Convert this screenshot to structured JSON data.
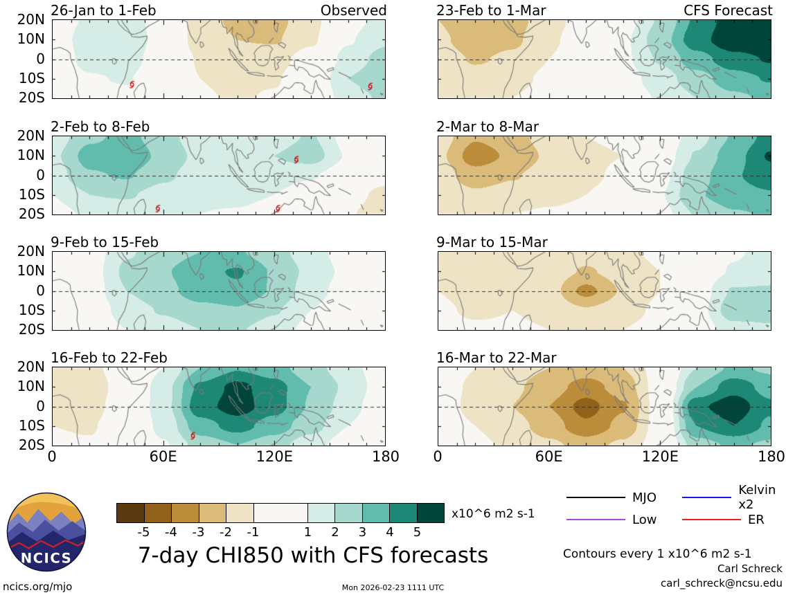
{
  "chart_data": {
    "type": "heatmap",
    "title": "7-day CHI850 with CFS forecasts",
    "units": "x10^6 m2 s-1",
    "lon": [
      0,
      20,
      40,
      60,
      80,
      100,
      120,
      140,
      160,
      180
    ],
    "lat": [
      20,
      10,
      0,
      -10,
      -20
    ],
    "x_ticks": [
      "0",
      "60E",
      "120E",
      "180"
    ],
    "y_ticks": [
      "20N",
      "10N",
      "0",
      "10S",
      "20S"
    ],
    "colorbar": {
      "ticks": [
        -5,
        -4,
        -3,
        -2,
        -1,
        1,
        2,
        3,
        4,
        5
      ],
      "colors": [
        "#5a3a10",
        "#91611b",
        "#bb8c3a",
        "#dabb79",
        "#eee3c4",
        "#f8f7f4",
        "#d6ece6",
        "#a6d8ce",
        "#62bcad",
        "#1d8876",
        "#00453a"
      ]
    },
    "panels": [
      {
        "title": "26-Jan to 1-Feb",
        "corner_label": "Observed",
        "column": "Observed",
        "values": [
          [
            0.3,
            1.2,
            1.6,
            0.4,
            -1.6,
            -2.2,
            -2.3,
            -1.4,
            0.6,
            1.4
          ],
          [
            0.3,
            1.6,
            2.0,
            0.3,
            -1.5,
            -2.0,
            -2.1,
            -1.2,
            0.9,
            1.8
          ],
          [
            0.2,
            1.4,
            1.6,
            0.1,
            -1.1,
            -1.5,
            -1.4,
            -0.5,
            1.4,
            2.4
          ],
          [
            0.1,
            0.9,
            1.1,
            -0.2,
            -1.0,
            -1.3,
            -1.1,
            -0.1,
            2.0,
            2.8
          ],
          [
            0.0,
            0.5,
            0.7,
            -0.3,
            -0.9,
            -1.1,
            -0.9,
            -0.1,
            1.5,
            2.2
          ]
        ],
        "cyclones": [
          {
            "lon": 43,
            "lat": -13
          },
          {
            "lon": 172,
            "lat": -14
          }
        ]
      },
      {
        "title": "2-Feb to 8-Feb",
        "column": "Observed",
        "values": [
          [
            1.4,
            2.8,
            3.3,
            2.4,
            1.4,
            1.1,
            1.6,
            2.1,
            0.6,
            0.0
          ],
          [
            1.8,
            3.4,
            3.8,
            2.7,
            1.7,
            1.4,
            2.0,
            2.5,
            0.9,
            0.0
          ],
          [
            1.5,
            2.9,
            3.1,
            2.2,
            1.5,
            1.4,
            1.5,
            1.1,
            0.3,
            -0.6
          ],
          [
            1.0,
            2.0,
            2.1,
            1.6,
            1.2,
            1.3,
            1.0,
            0.3,
            -0.6,
            -1.3
          ],
          [
            0.6,
            1.2,
            1.4,
            1.1,
            1.0,
            0.9,
            0.5,
            0.0,
            -0.9,
            -1.6
          ]
        ],
        "cyclones": [
          {
            "lon": 132,
            "lat": 8
          },
          {
            "lon": 57,
            "lat": -17
          },
          {
            "lon": 122,
            "lat": -17
          }
        ]
      },
      {
        "title": "9-Feb to 15-Feb",
        "column": "Observed",
        "values": [
          [
            -0.8,
            0.4,
            1.9,
            2.5,
            3.0,
            3.1,
            2.4,
            1.4,
            0.5,
            0.2
          ],
          [
            -1.0,
            0.5,
            2.2,
            2.9,
            3.7,
            4.1,
            2.9,
            1.7,
            0.7,
            0.3
          ],
          [
            -1.0,
            0.4,
            2.0,
            2.7,
            3.5,
            3.8,
            2.9,
            1.4,
            0.5,
            0.2
          ],
          [
            -0.8,
            0.2,
            1.5,
            2.1,
            2.7,
            2.9,
            2.1,
            1.0,
            0.3,
            0.0
          ],
          [
            -0.5,
            0.1,
            1.0,
            1.5,
            2.0,
            2.1,
            1.5,
            0.7,
            0.2,
            0.0
          ]
        ],
        "cyclones": []
      },
      {
        "title": "16-Feb to 22-Feb",
        "column": "Observed",
        "values": [
          [
            -1.0,
            -1.2,
            -0.5,
            1.0,
            3.0,
            3.9,
            3.4,
            2.4,
            1.4,
            0.3
          ],
          [
            -1.2,
            -1.5,
            -0.5,
            1.6,
            4.2,
            5.3,
            4.4,
            3.0,
            1.8,
            0.3
          ],
          [
            -1.2,
            -1.4,
            -0.3,
            1.6,
            4.6,
            5.5,
            4.4,
            2.9,
            1.5,
            0.0
          ],
          [
            -1.0,
            -1.1,
            -0.2,
            1.3,
            3.6,
            4.4,
            3.5,
            2.4,
            1.0,
            -0.3
          ],
          [
            -0.8,
            -0.9,
            0.0,
            0.9,
            2.4,
            3.0,
            2.4,
            1.4,
            0.4,
            -0.8
          ]
        ],
        "cyclones": [
          {
            "lon": 76,
            "lat": -15
          }
        ]
      },
      {
        "title": "23-Feb to 1-Mar",
        "corner_label": "CFS Forecast",
        "column": "CFS Forecast",
        "values": [
          [
            -2.0,
            -2.9,
            -2.4,
            -1.4,
            -0.5,
            0.5,
            2.1,
            4.2,
            5.6,
            5.9
          ],
          [
            -1.8,
            -2.6,
            -2.2,
            -1.2,
            -0.3,
            0.8,
            2.5,
            4.6,
            5.8,
            6.0
          ],
          [
            -1.5,
            -2.1,
            -1.8,
            -1.0,
            -0.1,
            0.8,
            2.1,
            3.6,
            4.6,
            5.1
          ],
          [
            -1.2,
            -1.6,
            -1.3,
            -0.8,
            -0.1,
            0.5,
            1.5,
            2.6,
            3.6,
            4.1
          ],
          [
            -1.0,
            -1.2,
            -1.0,
            -0.6,
            -0.1,
            0.3,
            1.1,
            2.0,
            2.8,
            3.2
          ]
        ],
        "cyclones": []
      },
      {
        "title": "2-Mar to 8-Mar",
        "column": "CFS Forecast",
        "values": [
          [
            -1.5,
            -2.9,
            -2.4,
            -1.5,
            -1.0,
            -0.8,
            0.0,
            1.6,
            3.1,
            4.4
          ],
          [
            -1.8,
            -3.5,
            -2.8,
            -1.8,
            -1.2,
            -1.0,
            0.3,
            2.1,
            3.6,
            5.1
          ],
          [
            -1.5,
            -2.6,
            -2.1,
            -1.5,
            -1.2,
            -0.8,
            0.6,
            2.6,
            3.9,
            4.6
          ],
          [
            -1.2,
            -1.8,
            -1.5,
            -1.2,
            -1.0,
            -0.5,
            0.9,
            2.9,
            3.6,
            3.9
          ],
          [
            -1.0,
            -1.2,
            -1.0,
            -0.9,
            -0.8,
            -0.4,
            0.6,
            2.1,
            2.9,
            3.1
          ]
        ],
        "cyclones": []
      },
      {
        "title": "9-Mar to 15-Mar",
        "column": "CFS Forecast",
        "values": [
          [
            -1.0,
            -1.5,
            -1.2,
            -1.2,
            -1.6,
            -1.2,
            -0.8,
            0.0,
            0.9,
            1.3
          ],
          [
            -1.2,
            -1.8,
            -1.5,
            -1.5,
            -2.1,
            -1.6,
            -1.0,
            0.2,
            1.1,
            1.6
          ],
          [
            -1.0,
            -1.5,
            -1.3,
            -1.6,
            -3.3,
            -1.9,
            -1.0,
            0.4,
            2.1,
            2.1
          ],
          [
            -0.8,
            -1.2,
            -1.0,
            -1.3,
            -1.9,
            -1.4,
            -0.8,
            0.5,
            2.6,
            2.3
          ],
          [
            -0.5,
            -0.8,
            -0.8,
            -1.0,
            -1.3,
            -1.0,
            -0.6,
            0.3,
            1.6,
            1.9
          ]
        ],
        "cyclones": []
      },
      {
        "title": "16-Mar to 22-Mar",
        "column": "CFS Forecast",
        "values": [
          [
            -0.3,
            -1.0,
            -1.5,
            -2.0,
            -2.5,
            -2.0,
            -0.5,
            2.0,
            3.2,
            2.8
          ],
          [
            -0.5,
            -1.2,
            -1.8,
            -2.6,
            -3.4,
            -2.6,
            -0.5,
            3.0,
            4.6,
            3.6
          ],
          [
            -0.5,
            -1.3,
            -2.0,
            -3.0,
            -4.4,
            -3.1,
            -0.5,
            4.8,
            5.6,
            4.2
          ],
          [
            -0.4,
            -1.0,
            -1.6,
            -2.5,
            -3.8,
            -2.7,
            -0.5,
            4.0,
            5.0,
            3.8
          ],
          [
            -0.2,
            -0.8,
            -1.2,
            -1.8,
            -2.4,
            -1.8,
            -0.4,
            2.5,
            3.2,
            2.8
          ]
        ],
        "cyclones": []
      }
    ]
  },
  "legend": {
    "items": [
      {
        "label": "MJO",
        "color": "#000000"
      },
      {
        "label": "Kelvin x2",
        "color": "#1616e8"
      },
      {
        "label": "Low",
        "color": "#a44ae0"
      },
      {
        "label": "ER",
        "color": "#ee1c1c"
      }
    ]
  },
  "footer": {
    "units_label": "x10^6 m2 s-1",
    "contours_note": "Contours every 1 x10^6 m2 s-1",
    "credit_name": "Carl Schreck",
    "credit_email": "carl_schreck@ncsu.edu",
    "site": "ncics.org/mjo",
    "timestamp": "Mon 2026-02-23 1111 UTC",
    "logo_text": "NCICS"
  }
}
